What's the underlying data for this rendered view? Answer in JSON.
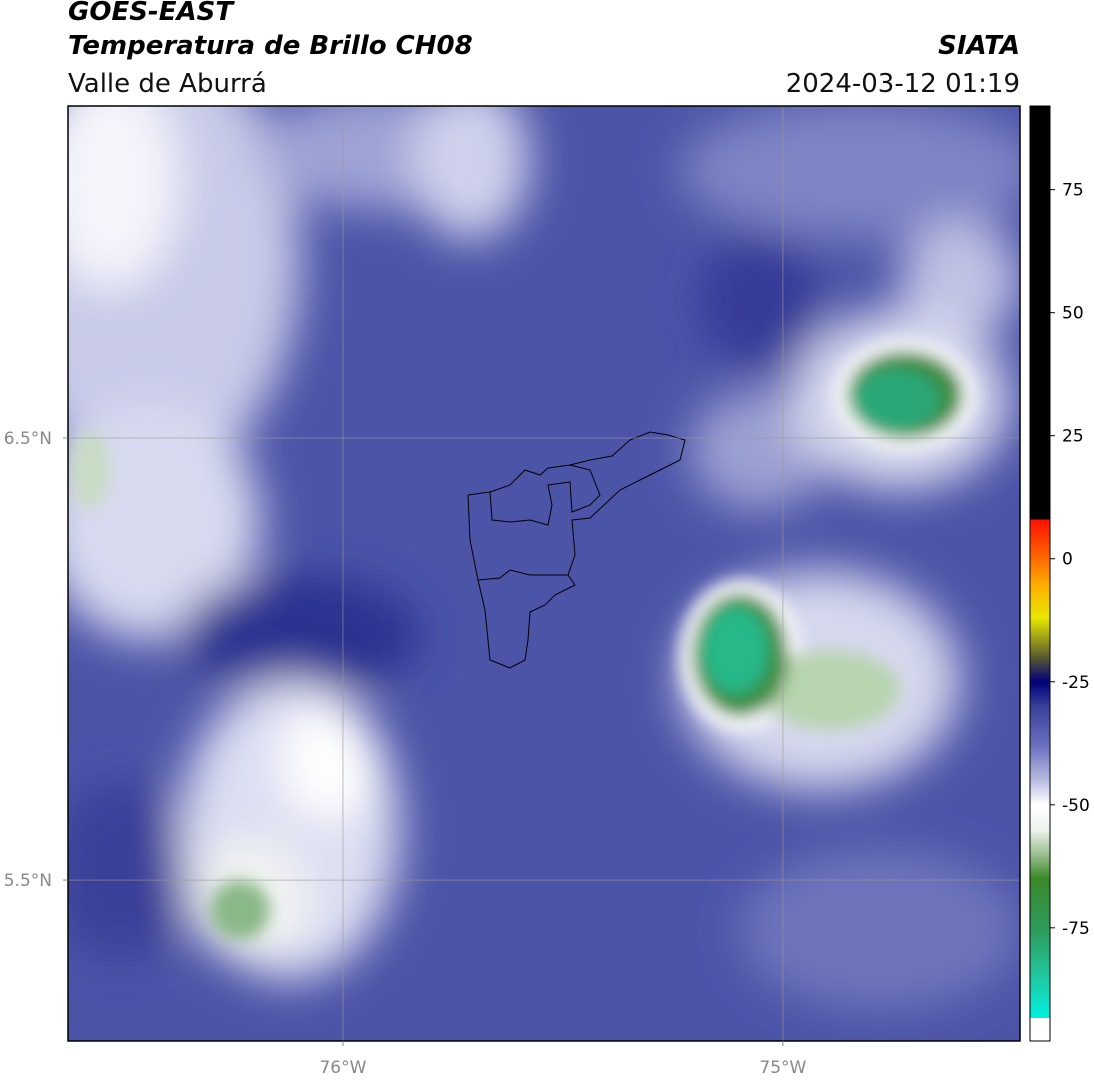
{
  "header": {
    "title": "GOES-EAST",
    "subtitle": "Temperatura de Brillo CH08",
    "region": "Valle de Aburrá",
    "agency": "SIATA",
    "datetime": "2024-03-12 01:19"
  },
  "map": {
    "xlim": [
      -76.625,
      -74.461
    ],
    "ylim": [
      5.136,
      7.251
    ],
    "xticks": [
      {
        "value": -76,
        "label": "76°W"
      },
      {
        "value": -75,
        "label": "75°W"
      }
    ],
    "yticks": [
      {
        "value": 6.5,
        "label": "6.5°N"
      },
      {
        "value": 5.5,
        "label": "5.5°N"
      }
    ],
    "grid": true
  },
  "colorbar": {
    "lim": [
      -98,
      92
    ],
    "ticks": [
      75,
      50,
      25,
      0,
      -25,
      -50,
      -75
    ],
    "stops": [
      {
        "value": -98,
        "color": "#ffffff"
      },
      {
        "value": -93.3,
        "color": "#ffffff"
      },
      {
        "value": -93.3,
        "color": "#00f0e0"
      },
      {
        "value": -85,
        "color": "#20c8a0"
      },
      {
        "value": -75,
        "color": "#2e9a5a"
      },
      {
        "value": -65,
        "color": "#3a8a2a"
      },
      {
        "value": -60,
        "color": "#9cc090"
      },
      {
        "value": -55,
        "color": "#eef4ee"
      },
      {
        "value": -50,
        "color": "#ffffff"
      },
      {
        "value": -45,
        "color": "#b8bce0"
      },
      {
        "value": -38,
        "color": "#6a70c0"
      },
      {
        "value": -30,
        "color": "#3a3f9a"
      },
      {
        "value": -25,
        "color": "#00007a"
      },
      {
        "value": -20,
        "color": "#5a5a30"
      },
      {
        "value": -12,
        "color": "#e8e800"
      },
      {
        "value": -5,
        "color": "#ffaa00"
      },
      {
        "value": 0,
        "color": "#ff6a00"
      },
      {
        "value": 8,
        "color": "#ff1000"
      },
      {
        "value": 8,
        "color": "#000000"
      },
      {
        "value": 92,
        "color": "#000000"
      }
    ]
  }
}
